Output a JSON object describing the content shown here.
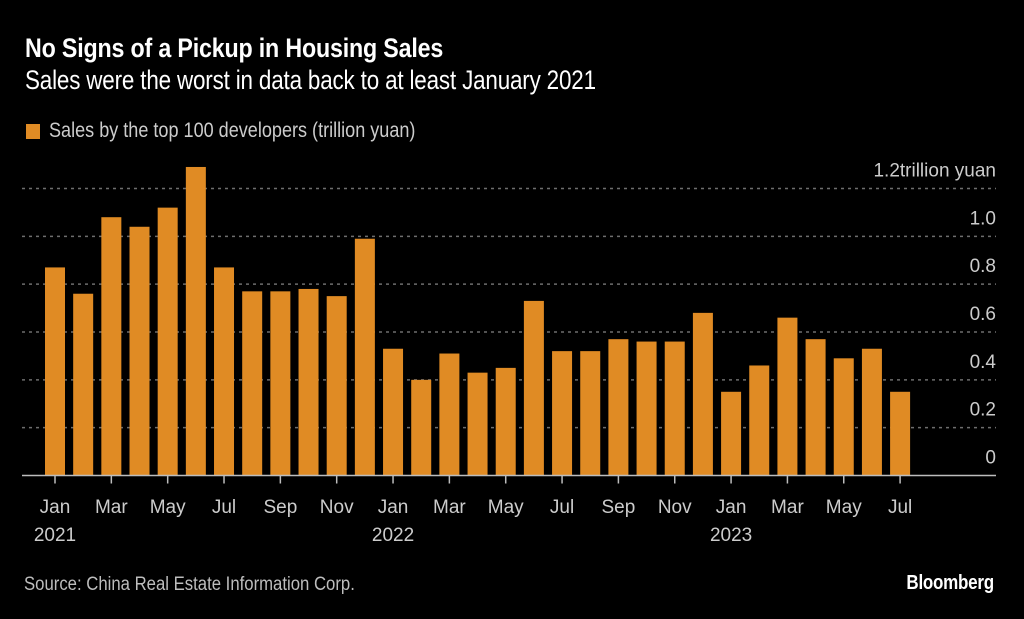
{
  "header": {
    "title": "No Signs of a Pickup in Housing Sales",
    "subtitle": "Sales were the worst in data back to at least January 2021"
  },
  "legend": {
    "label": "Sales by the top 100 developers (trillion yuan)",
    "color": "#e08b24"
  },
  "footer": {
    "source": "Source: China Real Estate Information Corp.",
    "brand": "Bloomberg"
  },
  "colors": {
    "background": "#000000",
    "bar": "#e08b24",
    "grid": "#6e6e6e",
    "axis": "#bdbdbd",
    "text": "#cccccc"
  },
  "chart_data": {
    "type": "bar",
    "title": "No Signs of a Pickup in Housing Sales",
    "subtitle": "Sales were the worst in data back to at least January 2021",
    "xlabel": "",
    "ylabel": "trillion yuan",
    "ylim": [
      0,
      1.2
    ],
    "yaxis_position": "right",
    "yticks": [
      0,
      0.2,
      0.4,
      0.6,
      0.8,
      1.0,
      1.2
    ],
    "ytick_labels": [
      "0",
      "0.2",
      "0.4",
      "0.6",
      "0.8",
      "1.0",
      "1.2trillion yuan"
    ],
    "grid": true,
    "legend_position": "top-left",
    "categories": [
      "2021-01",
      "2021-02",
      "2021-03",
      "2021-04",
      "2021-05",
      "2021-06",
      "2021-07",
      "2021-08",
      "2021-09",
      "2021-10",
      "2021-11",
      "2021-12",
      "2022-01",
      "2022-02",
      "2022-03",
      "2022-04",
      "2022-05",
      "2022-06",
      "2022-07",
      "2022-08",
      "2022-09",
      "2022-10",
      "2022-11",
      "2022-12",
      "2023-01",
      "2023-02",
      "2023-03",
      "2023-04",
      "2023-05",
      "2023-06",
      "2023-07"
    ],
    "xtick_labels": [
      {
        "index": 0,
        "label": "Jan",
        "year": "2021"
      },
      {
        "index": 2,
        "label": "Mar",
        "year": ""
      },
      {
        "index": 4,
        "label": "May",
        "year": ""
      },
      {
        "index": 6,
        "label": "Jul",
        "year": ""
      },
      {
        "index": 8,
        "label": "Sep",
        "year": ""
      },
      {
        "index": 10,
        "label": "Nov",
        "year": ""
      },
      {
        "index": 12,
        "label": "Jan",
        "year": "2022"
      },
      {
        "index": 14,
        "label": "Mar",
        "year": ""
      },
      {
        "index": 16,
        "label": "May",
        "year": ""
      },
      {
        "index": 18,
        "label": "Jul",
        "year": ""
      },
      {
        "index": 20,
        "label": "Sep",
        "year": ""
      },
      {
        "index": 22,
        "label": "Nov",
        "year": ""
      },
      {
        "index": 24,
        "label": "Jan",
        "year": "2023"
      },
      {
        "index": 26,
        "label": "Mar",
        "year": ""
      },
      {
        "index": 28,
        "label": "May",
        "year": ""
      },
      {
        "index": 30,
        "label": "Jul",
        "year": ""
      }
    ],
    "series": [
      {
        "name": "Sales by the top 100 developers (trillion yuan)",
        "values": [
          0.87,
          0.76,
          1.08,
          1.04,
          1.12,
          1.29,
          0.87,
          0.77,
          0.77,
          0.78,
          0.75,
          0.99,
          0.53,
          0.4,
          0.51,
          0.43,
          0.45,
          0.73,
          0.52,
          0.52,
          0.57,
          0.56,
          0.56,
          0.68,
          0.35,
          0.46,
          0.66,
          0.57,
          0.49,
          0.53,
          0.35
        ]
      }
    ]
  }
}
